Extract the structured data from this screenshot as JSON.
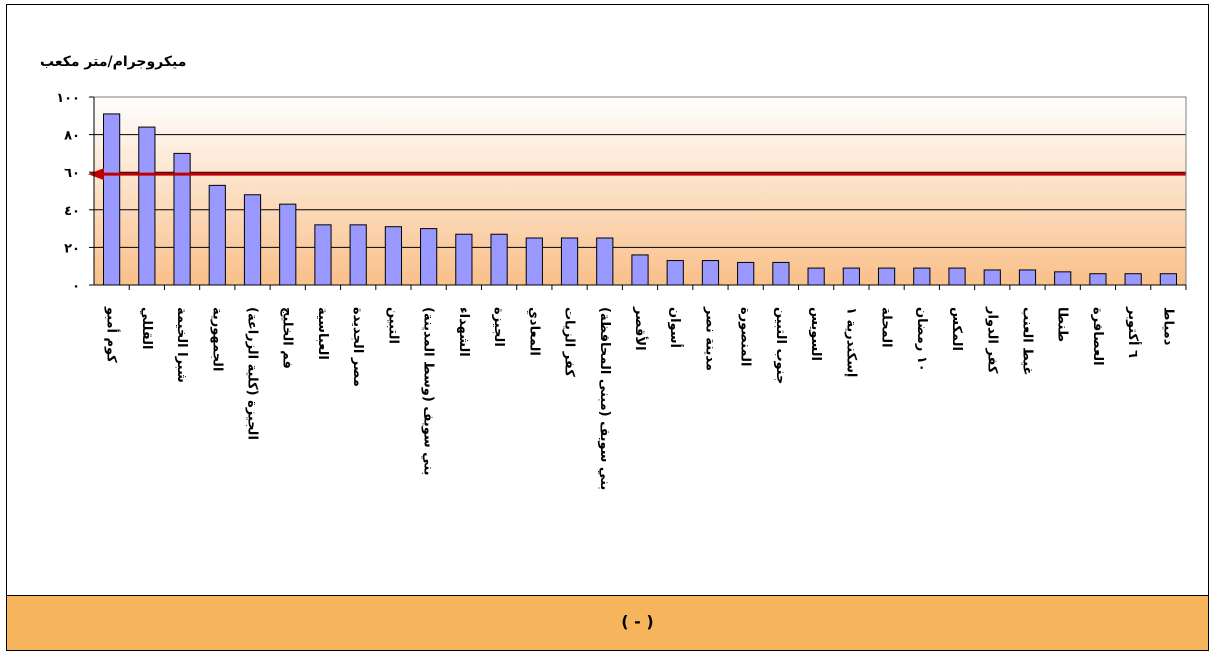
{
  "chart_data": {
    "type": "bar",
    "ylabel": "ميكروجرام/متر مكعب",
    "ylim": [
      0,
      100
    ],
    "yticks": [
      0,
      20,
      40,
      60,
      80,
      100
    ],
    "ytick_labels": [
      "٠",
      "٢٠",
      "٤٠",
      "٦٠",
      "٨٠",
      "١٠٠"
    ],
    "reference_line": {
      "value": 59,
      "color": "#c00000"
    },
    "bar_color": "#9999ff",
    "grid": true,
    "background_gradient": [
      "#ffffff",
      "#f9c08a"
    ],
    "categories": [
      "كوم أمبو",
      "القللي",
      "شبرا الخيمة",
      "الجمهورية",
      "الجيزة (كلية الزراعة)",
      "فم الخليج",
      "العباسية",
      "مصر الجديدة",
      "التبين",
      "بني سويف (وسط المدينة)",
      "الشهداء",
      "الجيزة",
      "المعادي",
      "كفر الزيات",
      "بني سويف (مبنى المحافظة)",
      "الأقصر",
      "أسوان",
      "مدينة نصر",
      "المنصورة",
      "جنوب التبين",
      "السويس",
      "إسكندرية ١",
      "المحلة",
      "١٠ رمضان",
      "المكس",
      "كفر الدوار",
      "غيط العنب",
      "طنطا",
      "العصافرة",
      "٦ أكتوبر",
      "دمياط"
    ],
    "values": [
      91,
      84,
      70,
      53,
      48,
      43,
      32,
      32,
      31,
      30,
      27,
      27,
      25,
      25,
      25,
      16,
      13,
      13,
      12,
      12,
      9,
      9,
      9,
      9,
      9,
      8,
      8,
      7,
      6,
      6,
      6
    ]
  },
  "caption": "(  -  )"
}
